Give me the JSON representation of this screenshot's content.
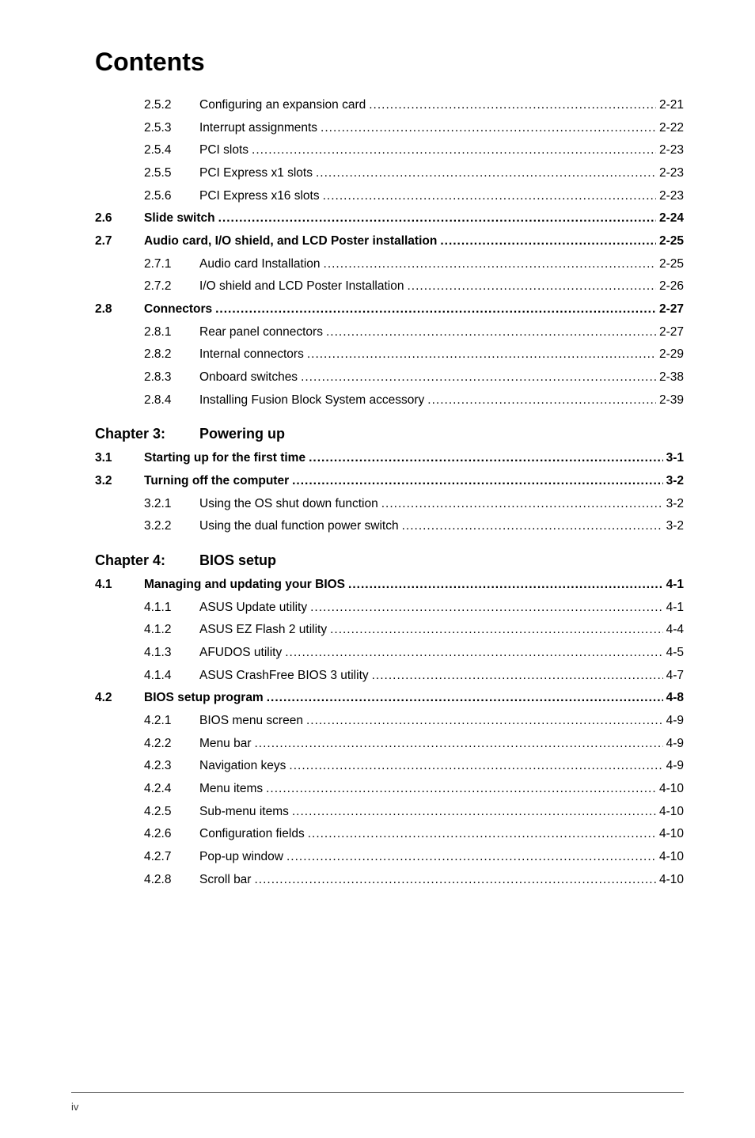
{
  "title": "Contents",
  "footer_page": "iv",
  "entries": [
    {
      "level": "sub",
      "num": "2.5.2",
      "title": "Configuring an expansion card",
      "page": "2-21",
      "bold": false
    },
    {
      "level": "sub",
      "num": "2.5.3",
      "title": "Interrupt assignments",
      "page": "2-22",
      "bold": false
    },
    {
      "level": "sub",
      "num": "2.5.4",
      "title": "PCI slots",
      "page": "2-23",
      "bold": false
    },
    {
      "level": "sub",
      "num": "2.5.5",
      "title": "PCI Express x1 slots",
      "page": "2-23",
      "bold": false
    },
    {
      "level": "sub",
      "num": "2.5.6",
      "title": "PCI Express x16 slots",
      "page": "2-23",
      "bold": false
    },
    {
      "level": "sec",
      "num": "2.6",
      "title": "Slide switch",
      "page": "2-24",
      "bold": true
    },
    {
      "level": "sec",
      "num": "2.7",
      "title": "Audio card, I/O shield, and LCD Poster installation",
      "page": "2-25",
      "bold": true
    },
    {
      "level": "sub",
      "num": "2.7.1",
      "title": "Audio card Installation",
      "page": "2-25",
      "bold": false
    },
    {
      "level": "sub",
      "num": "2.7.2",
      "title": "I/O shield and LCD Poster Installation",
      "page": "2-26",
      "bold": false
    },
    {
      "level": "sec",
      "num": "2.8",
      "title": "Connectors",
      "page": "2-27",
      "bold": true
    },
    {
      "level": "sub",
      "num": "2.8.1",
      "title": "Rear panel connectors",
      "page": "2-27",
      "bold": false
    },
    {
      "level": "sub",
      "num": "2.8.2",
      "title": "Internal connectors",
      "page": "2-29",
      "bold": false
    },
    {
      "level": "sub",
      "num": "2.8.3",
      "title": "Onboard switches",
      "page": "2-38",
      "bold": false
    },
    {
      "level": "sub",
      "num": "2.8.4",
      "title": "Installing Fusion Block System accessory",
      "page": "2-39",
      "bold": false
    }
  ],
  "chapter3": {
    "label": "Chapter 3:",
    "title": "Powering up",
    "entries": [
      {
        "level": "sec",
        "num": "3.1",
        "title": "Starting up for the first time",
        "page": "3-1",
        "bold": true
      },
      {
        "level": "sec",
        "num": "3.2",
        "title": "Turning off the computer",
        "page": "3-2",
        "bold": true
      },
      {
        "level": "sub",
        "num": "3.2.1",
        "title": "Using the OS shut down function",
        "page": "3-2",
        "bold": false
      },
      {
        "level": "sub",
        "num": "3.2.2",
        "title": "Using the dual function power switch",
        "page": "3-2",
        "bold": false
      }
    ]
  },
  "chapter4": {
    "label": "Chapter 4:",
    "title": "BIOS setup",
    "entries": [
      {
        "level": "sec",
        "num": "4.1",
        "title": "Managing and updating your BIOS",
        "page": "4-1",
        "bold": true
      },
      {
        "level": "sub",
        "num": "4.1.1",
        "title": "ASUS Update utility",
        "page": "4-1",
        "bold": false
      },
      {
        "level": "sub",
        "num": "4.1.2",
        "title": "ASUS EZ Flash 2 utility",
        "page": "4-4",
        "bold": false
      },
      {
        "level": "sub",
        "num": "4.1.3",
        "title": "AFUDOS utility",
        "page": "4-5",
        "bold": false
      },
      {
        "level": "sub",
        "num": "4.1.4",
        "title": "ASUS CrashFree BIOS 3 utility",
        "page": "4-7",
        "bold": false
      },
      {
        "level": "sec",
        "num": "4.2",
        "title": "BIOS setup program",
        "page": "4-8",
        "bold": true
      },
      {
        "level": "sub",
        "num": "4.2.1",
        "title": "BIOS menu screen",
        "page": "4-9",
        "bold": false
      },
      {
        "level": "sub",
        "num": "4.2.2",
        "title": "Menu bar",
        "page": "4-9",
        "bold": false
      },
      {
        "level": "sub",
        "num": "4.2.3",
        "title": "Navigation keys",
        "page": "4-9",
        "bold": false
      },
      {
        "level": "sub",
        "num": "4.2.4",
        "title": "Menu items",
        "page": "4-10",
        "bold": false
      },
      {
        "level": "sub",
        "num": "4.2.5",
        "title": "Sub-menu items",
        "page": "4-10",
        "bold": false
      },
      {
        "level": "sub",
        "num": "4.2.6",
        "title": "Configuration fields",
        "page": "4-10",
        "bold": false
      },
      {
        "level": "sub",
        "num": "4.2.7",
        "title": "Pop-up window",
        "page": "4-10",
        "bold": false
      },
      {
        "level": "sub",
        "num": "4.2.8",
        "title": "Scroll bar",
        "page": "4-10",
        "bold": false
      }
    ]
  }
}
